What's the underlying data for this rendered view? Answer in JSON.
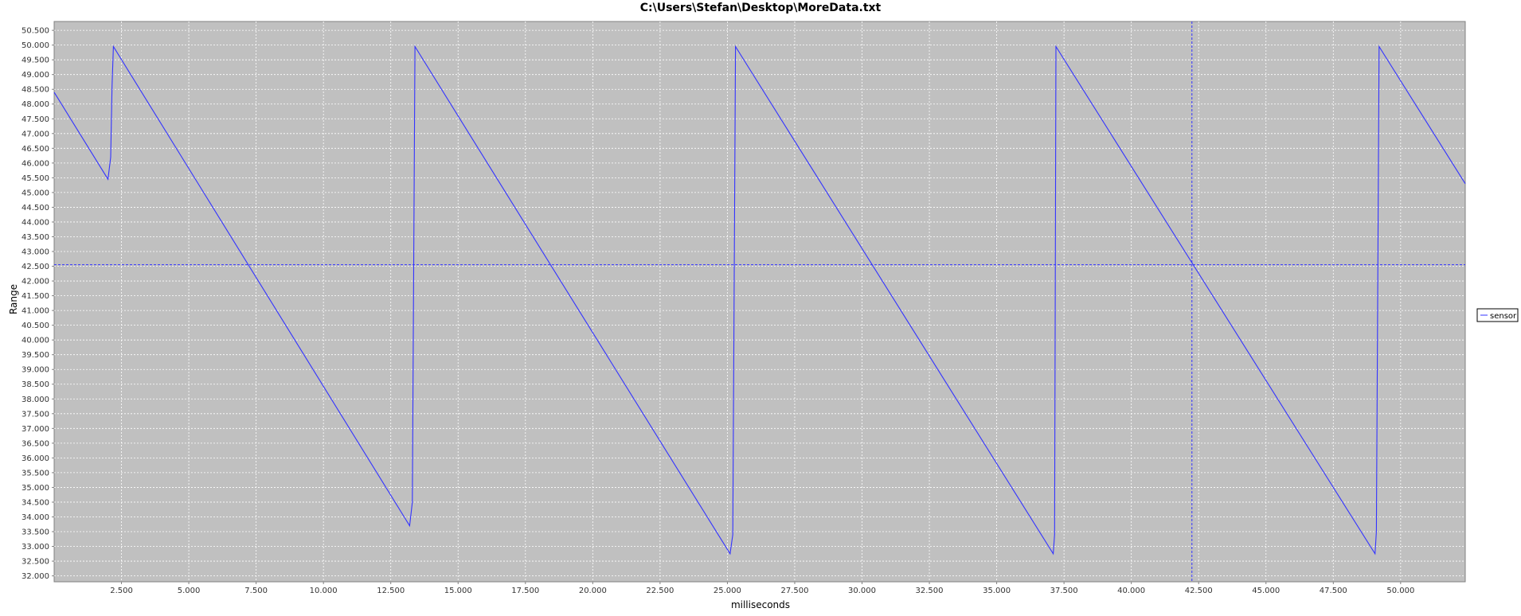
{
  "chart_data": {
    "type": "line",
    "title": "C:\\Users\\Stefan\\Desktop\\MoreData.txt",
    "xlabel": "milliseconds",
    "ylabel": "Range",
    "xlim": [
      0,
      52400
    ],
    "ylim": [
      31800,
      50800
    ],
    "grid": true,
    "legend_position": "right",
    "x_ticks": [
      {
        "value": 2500,
        "label": "2.500"
      },
      {
        "value": 5000,
        "label": "5.000"
      },
      {
        "value": 7500,
        "label": "7.500"
      },
      {
        "value": 10000,
        "label": "10.000"
      },
      {
        "value": 12500,
        "label": "12.500"
      },
      {
        "value": 15000,
        "label": "15.000"
      },
      {
        "value": 17500,
        "label": "17.500"
      },
      {
        "value": 20000,
        "label": "20.000"
      },
      {
        "value": 22500,
        "label": "22.500"
      },
      {
        "value": 25000,
        "label": "25.000"
      },
      {
        "value": 27500,
        "label": "27.500"
      },
      {
        "value": 30000,
        "label": "30.000"
      },
      {
        "value": 32500,
        "label": "32.500"
      },
      {
        "value": 35000,
        "label": "35.000"
      },
      {
        "value": 37500,
        "label": "37.500"
      },
      {
        "value": 40000,
        "label": "40.000"
      },
      {
        "value": 42500,
        "label": "42.500"
      },
      {
        "value": 45000,
        "label": "45.000"
      },
      {
        "value": 47500,
        "label": "47.500"
      },
      {
        "value": 50000,
        "label": "50.000"
      }
    ],
    "y_ticks": [
      {
        "value": 32000,
        "label": "32.000"
      },
      {
        "value": 32500,
        "label": "32.500"
      },
      {
        "value": 33000,
        "label": "33.000"
      },
      {
        "value": 33500,
        "label": "33.500"
      },
      {
        "value": 34000,
        "label": "34.000"
      },
      {
        "value": 34500,
        "label": "34.500"
      },
      {
        "value": 35000,
        "label": "35.000"
      },
      {
        "value": 35500,
        "label": "35.500"
      },
      {
        "value": 36000,
        "label": "36.000"
      },
      {
        "value": 36500,
        "label": "36.500"
      },
      {
        "value": 37000,
        "label": "37.000"
      },
      {
        "value": 37500,
        "label": "37.500"
      },
      {
        "value": 38000,
        "label": "38.000"
      },
      {
        "value": 38500,
        "label": "38.500"
      },
      {
        "value": 39000,
        "label": "39.000"
      },
      {
        "value": 39500,
        "label": "39.500"
      },
      {
        "value": 40000,
        "label": "40.000"
      },
      {
        "value": 40500,
        "label": "40.500"
      },
      {
        "value": 41000,
        "label": "41.000"
      },
      {
        "value": 41500,
        "label": "41.500"
      },
      {
        "value": 42000,
        "label": "42.000"
      },
      {
        "value": 42500,
        "label": "42.500"
      },
      {
        "value": 43000,
        "label": "43.000"
      },
      {
        "value": 43500,
        "label": "43.500"
      },
      {
        "value": 44000,
        "label": "44.000"
      },
      {
        "value": 44500,
        "label": "44.500"
      },
      {
        "value": 45000,
        "label": "45.000"
      },
      {
        "value": 45500,
        "label": "45.500"
      },
      {
        "value": 46000,
        "label": "46.000"
      },
      {
        "value": 46500,
        "label": "46.500"
      },
      {
        "value": 47000,
        "label": "47.000"
      },
      {
        "value": 47500,
        "label": "47.500"
      },
      {
        "value": 48000,
        "label": "48.000"
      },
      {
        "value": 48500,
        "label": "48.500"
      },
      {
        "value": 49000,
        "label": "49.000"
      },
      {
        "value": 49500,
        "label": "49.500"
      },
      {
        "value": 50000,
        "label": "50.000"
      },
      {
        "value": 50500,
        "label": "50.500"
      }
    ],
    "crosshair": {
      "x": 42250,
      "y": 42550
    },
    "series": [
      {
        "name": "sensor",
        "color": "#3333ff",
        "points": [
          [
            0,
            48400
          ],
          [
            2000,
            45450
          ],
          [
            2100,
            46200
          ],
          [
            2150,
            48600
          ],
          [
            2200,
            49950
          ],
          [
            13200,
            33700
          ],
          [
            13300,
            34500
          ],
          [
            13400,
            49950
          ],
          [
            25100,
            32750
          ],
          [
            25200,
            33400
          ],
          [
            25300,
            49950
          ],
          [
            37100,
            32750
          ],
          [
            37150,
            33400
          ],
          [
            37200,
            49950
          ],
          [
            49050,
            32750
          ],
          [
            49100,
            33500
          ],
          [
            49200,
            49950
          ],
          [
            52400,
            45300
          ]
        ]
      }
    ]
  },
  "colors": {
    "plot_background": "#c0c0c0",
    "gridline": "#ffffff",
    "series_line": "#3333ff",
    "crosshair": "#3333ff",
    "axis": "#808080"
  }
}
